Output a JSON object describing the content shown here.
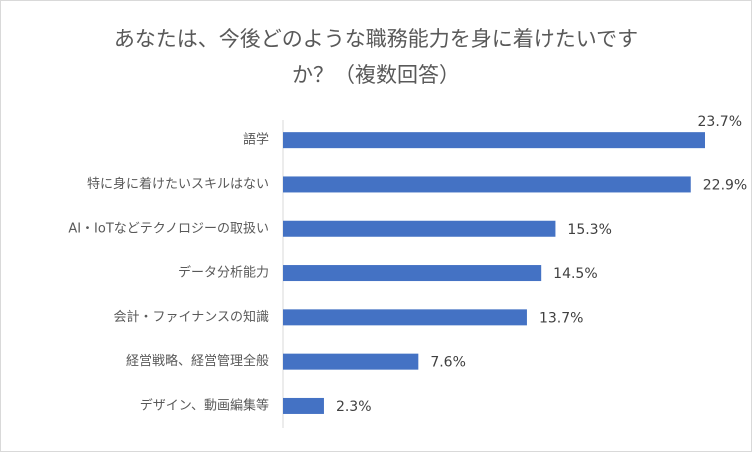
{
  "chart_data": {
    "type": "bar",
    "orientation": "horizontal",
    "title": [
      "あなたは、今後どのような職務能力を身に着けたいです",
      "か？（複数回答）"
    ],
    "categories": [
      "語学",
      "特に身に着けたいスキルはない",
      "AI・IoTなどテクノロジーの取扱い",
      "データ分析能力",
      "会計・ファイナンスの知識",
      "経営戦略、経営管理全般",
      "デザイン、動画編集等"
    ],
    "values": [
      23.7,
      22.9,
      15.3,
      14.5,
      13.7,
      7.6,
      2.3
    ],
    "value_labels": [
      "23.7%",
      "22.9%",
      "15.3%",
      "14.5%",
      "13.7%",
      "7.6%",
      "2.3%"
    ],
    "color": "#4472c4"
  }
}
